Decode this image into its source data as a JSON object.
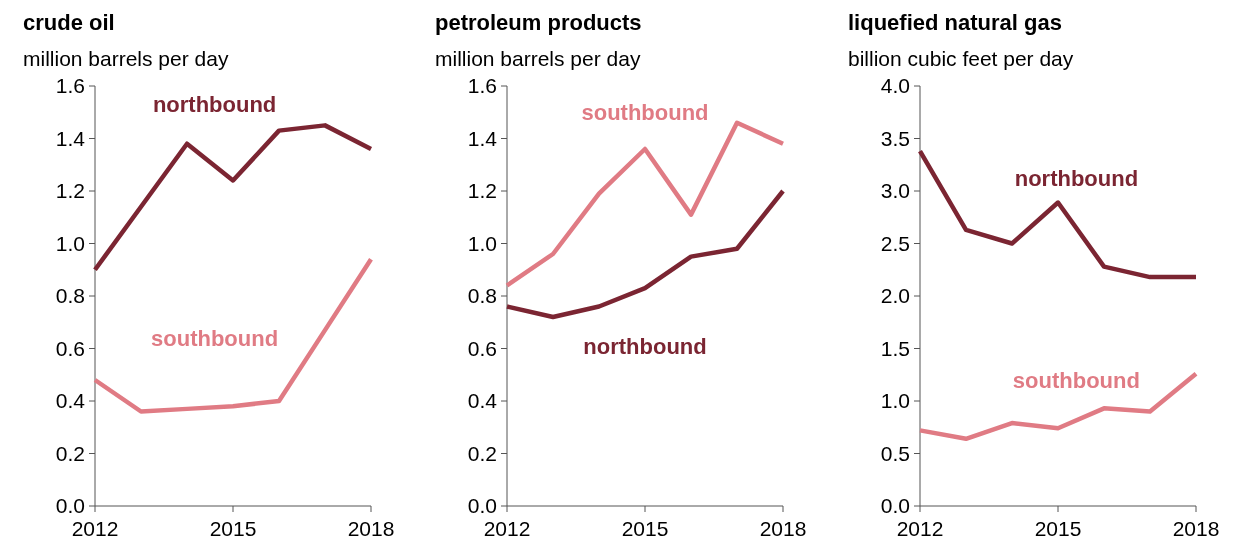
{
  "chart_data": [
    {
      "type": "line",
      "title": "crude oil",
      "ylabel": "million barrels per day",
      "x": [
        2012,
        2013,
        2014,
        2015,
        2016,
        2017,
        2018
      ],
      "xlim": [
        2012,
        2018
      ],
      "xticks": [
        2012,
        2015,
        2018
      ],
      "ylim": [
        0,
        1.6
      ],
      "yticks": [
        {
          "value": 0,
          "label": "0.0"
        },
        0.2,
        0.4,
        0.6,
        0.8,
        {
          "value": 1,
          "label": "1.0"
        },
        1.2,
        1.4,
        1.6
      ],
      "grid": false,
      "legend": false,
      "marker": "none",
      "line_style": "solid",
      "series": [
        {
          "name": "northbound",
          "color": "#7b2532",
          "values": [
            0.9,
            1.14,
            1.38,
            1.24,
            1.43,
            1.45,
            1.36
          ]
        },
        {
          "name": "southbound",
          "color": "#e07b84",
          "values": [
            0.48,
            0.36,
            0.37,
            0.38,
            0.4,
            0.67,
            0.94
          ]
        }
      ]
    },
    {
      "type": "line",
      "title": "petroleum products",
      "ylabel": "million barrels per day",
      "x": [
        2012,
        2013,
        2014,
        2015,
        2016,
        2017,
        2018
      ],
      "xlim": [
        2012,
        2018
      ],
      "xticks": [
        2012,
        2015,
        2018
      ],
      "ylim": [
        0,
        1.6
      ],
      "yticks": [
        {
          "value": 0,
          "label": "0.0"
        },
        0.2,
        0.4,
        0.6,
        0.8,
        {
          "value": 1,
          "label": "1.0"
        },
        1.2,
        1.4,
        1.6
      ],
      "grid": false,
      "legend": false,
      "marker": "none",
      "line_style": "solid",
      "series": [
        {
          "name": "southbound",
          "color": "#e07b84",
          "values": [
            0.84,
            0.96,
            1.19,
            1.36,
            1.11,
            1.46,
            1.38
          ]
        },
        {
          "name": "northbound",
          "color": "#7b2532",
          "values": [
            0.76,
            0.72,
            0.76,
            0.83,
            0.95,
            0.98,
            1.2
          ]
        }
      ]
    },
    {
      "type": "line",
      "title": "liquefied natural gas",
      "ylabel": "billion cubic feet per day",
      "x": [
        2012,
        2013,
        2014,
        2015,
        2016,
        2017,
        2018
      ],
      "xlim": [
        2012,
        2018
      ],
      "xticks": [
        2012,
        2015,
        2018
      ],
      "ylim": [
        0,
        4.0
      ],
      "yticks": [
        {
          "value": 0,
          "label": "0.0"
        },
        0.5,
        {
          "value": 1,
          "label": "1.0"
        },
        1.5,
        {
          "value": 2,
          "label": "2.0"
        },
        2.5,
        {
          "value": 3,
          "label": "3.0"
        },
        3.5,
        {
          "value": 4,
          "label": "4.0"
        }
      ],
      "grid": false,
      "legend": false,
      "marker": "none",
      "line_style": "solid",
      "series": [
        {
          "name": "northbound",
          "color": "#7b2532",
          "values": [
            3.38,
            2.63,
            2.5,
            2.89,
            2.28,
            2.18,
            2.18
          ]
        },
        {
          "name": "southbound",
          "color": "#e07b84",
          "values": [
            0.72,
            0.64,
            0.79,
            0.74,
            0.93,
            0.9,
            1.26
          ]
        }
      ]
    }
  ]
}
